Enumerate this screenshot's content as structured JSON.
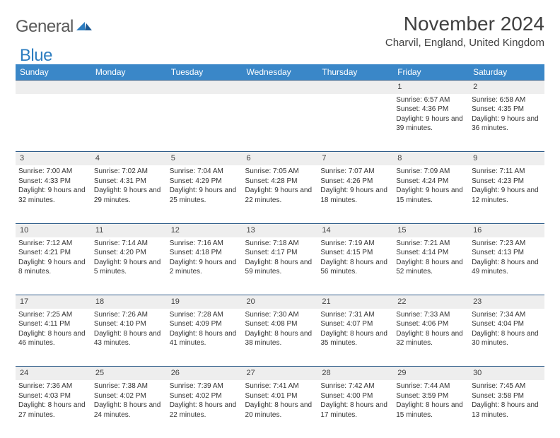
{
  "brand": {
    "part1": "General",
    "part2": "Blue"
  },
  "title": "November 2024",
  "location": "Charvil, England, United Kingdom",
  "colors": {
    "header_bg": "#3a87c8",
    "header_fg": "#ffffff",
    "daynum_bg": "#eeeeee",
    "daynum_border": "#2f5d8a",
    "text": "#333333",
    "brand_gray": "#5a5a5a",
    "brand_blue": "#2d7dc0"
  },
  "weekdays": [
    "Sunday",
    "Monday",
    "Tuesday",
    "Wednesday",
    "Thursday",
    "Friday",
    "Saturday"
  ],
  "weeks": [
    {
      "nums": [
        "",
        "",
        "",
        "",
        "",
        "1",
        "2"
      ],
      "cells": [
        {
          "sunrise": "",
          "sunset": "",
          "daylight": ""
        },
        {
          "sunrise": "",
          "sunset": "",
          "daylight": ""
        },
        {
          "sunrise": "",
          "sunset": "",
          "daylight": ""
        },
        {
          "sunrise": "",
          "sunset": "",
          "daylight": ""
        },
        {
          "sunrise": "",
          "sunset": "",
          "daylight": ""
        },
        {
          "sunrise": "Sunrise: 6:57 AM",
          "sunset": "Sunset: 4:36 PM",
          "daylight": "Daylight: 9 hours and 39 minutes."
        },
        {
          "sunrise": "Sunrise: 6:58 AM",
          "sunset": "Sunset: 4:35 PM",
          "daylight": "Daylight: 9 hours and 36 minutes."
        }
      ]
    },
    {
      "nums": [
        "3",
        "4",
        "5",
        "6",
        "7",
        "8",
        "9"
      ],
      "cells": [
        {
          "sunrise": "Sunrise: 7:00 AM",
          "sunset": "Sunset: 4:33 PM",
          "daylight": "Daylight: 9 hours and 32 minutes."
        },
        {
          "sunrise": "Sunrise: 7:02 AM",
          "sunset": "Sunset: 4:31 PM",
          "daylight": "Daylight: 9 hours and 29 minutes."
        },
        {
          "sunrise": "Sunrise: 7:04 AM",
          "sunset": "Sunset: 4:29 PM",
          "daylight": "Daylight: 9 hours and 25 minutes."
        },
        {
          "sunrise": "Sunrise: 7:05 AM",
          "sunset": "Sunset: 4:28 PM",
          "daylight": "Daylight: 9 hours and 22 minutes."
        },
        {
          "sunrise": "Sunrise: 7:07 AM",
          "sunset": "Sunset: 4:26 PM",
          "daylight": "Daylight: 9 hours and 18 minutes."
        },
        {
          "sunrise": "Sunrise: 7:09 AM",
          "sunset": "Sunset: 4:24 PM",
          "daylight": "Daylight: 9 hours and 15 minutes."
        },
        {
          "sunrise": "Sunrise: 7:11 AM",
          "sunset": "Sunset: 4:23 PM",
          "daylight": "Daylight: 9 hours and 12 minutes."
        }
      ]
    },
    {
      "nums": [
        "10",
        "11",
        "12",
        "13",
        "14",
        "15",
        "16"
      ],
      "cells": [
        {
          "sunrise": "Sunrise: 7:12 AM",
          "sunset": "Sunset: 4:21 PM",
          "daylight": "Daylight: 9 hours and 8 minutes."
        },
        {
          "sunrise": "Sunrise: 7:14 AM",
          "sunset": "Sunset: 4:20 PM",
          "daylight": "Daylight: 9 hours and 5 minutes."
        },
        {
          "sunrise": "Sunrise: 7:16 AM",
          "sunset": "Sunset: 4:18 PM",
          "daylight": "Daylight: 9 hours and 2 minutes."
        },
        {
          "sunrise": "Sunrise: 7:18 AM",
          "sunset": "Sunset: 4:17 PM",
          "daylight": "Daylight: 8 hours and 59 minutes."
        },
        {
          "sunrise": "Sunrise: 7:19 AM",
          "sunset": "Sunset: 4:15 PM",
          "daylight": "Daylight: 8 hours and 56 minutes."
        },
        {
          "sunrise": "Sunrise: 7:21 AM",
          "sunset": "Sunset: 4:14 PM",
          "daylight": "Daylight: 8 hours and 52 minutes."
        },
        {
          "sunrise": "Sunrise: 7:23 AM",
          "sunset": "Sunset: 4:13 PM",
          "daylight": "Daylight: 8 hours and 49 minutes."
        }
      ]
    },
    {
      "nums": [
        "17",
        "18",
        "19",
        "20",
        "21",
        "22",
        "23"
      ],
      "cells": [
        {
          "sunrise": "Sunrise: 7:25 AM",
          "sunset": "Sunset: 4:11 PM",
          "daylight": "Daylight: 8 hours and 46 minutes."
        },
        {
          "sunrise": "Sunrise: 7:26 AM",
          "sunset": "Sunset: 4:10 PM",
          "daylight": "Daylight: 8 hours and 43 minutes."
        },
        {
          "sunrise": "Sunrise: 7:28 AM",
          "sunset": "Sunset: 4:09 PM",
          "daylight": "Daylight: 8 hours and 41 minutes."
        },
        {
          "sunrise": "Sunrise: 7:30 AM",
          "sunset": "Sunset: 4:08 PM",
          "daylight": "Daylight: 8 hours and 38 minutes."
        },
        {
          "sunrise": "Sunrise: 7:31 AM",
          "sunset": "Sunset: 4:07 PM",
          "daylight": "Daylight: 8 hours and 35 minutes."
        },
        {
          "sunrise": "Sunrise: 7:33 AM",
          "sunset": "Sunset: 4:06 PM",
          "daylight": "Daylight: 8 hours and 32 minutes."
        },
        {
          "sunrise": "Sunrise: 7:34 AM",
          "sunset": "Sunset: 4:04 PM",
          "daylight": "Daylight: 8 hours and 30 minutes."
        }
      ]
    },
    {
      "nums": [
        "24",
        "25",
        "26",
        "27",
        "28",
        "29",
        "30"
      ],
      "cells": [
        {
          "sunrise": "Sunrise: 7:36 AM",
          "sunset": "Sunset: 4:03 PM",
          "daylight": "Daylight: 8 hours and 27 minutes."
        },
        {
          "sunrise": "Sunrise: 7:38 AM",
          "sunset": "Sunset: 4:02 PM",
          "daylight": "Daylight: 8 hours and 24 minutes."
        },
        {
          "sunrise": "Sunrise: 7:39 AM",
          "sunset": "Sunset: 4:02 PM",
          "daylight": "Daylight: 8 hours and 22 minutes."
        },
        {
          "sunrise": "Sunrise: 7:41 AM",
          "sunset": "Sunset: 4:01 PM",
          "daylight": "Daylight: 8 hours and 20 minutes."
        },
        {
          "sunrise": "Sunrise: 7:42 AM",
          "sunset": "Sunset: 4:00 PM",
          "daylight": "Daylight: 8 hours and 17 minutes."
        },
        {
          "sunrise": "Sunrise: 7:44 AM",
          "sunset": "Sunset: 3:59 PM",
          "daylight": "Daylight: 8 hours and 15 minutes."
        },
        {
          "sunrise": "Sunrise: 7:45 AM",
          "sunset": "Sunset: 3:58 PM",
          "daylight": "Daylight: 8 hours and 13 minutes."
        }
      ]
    }
  ]
}
